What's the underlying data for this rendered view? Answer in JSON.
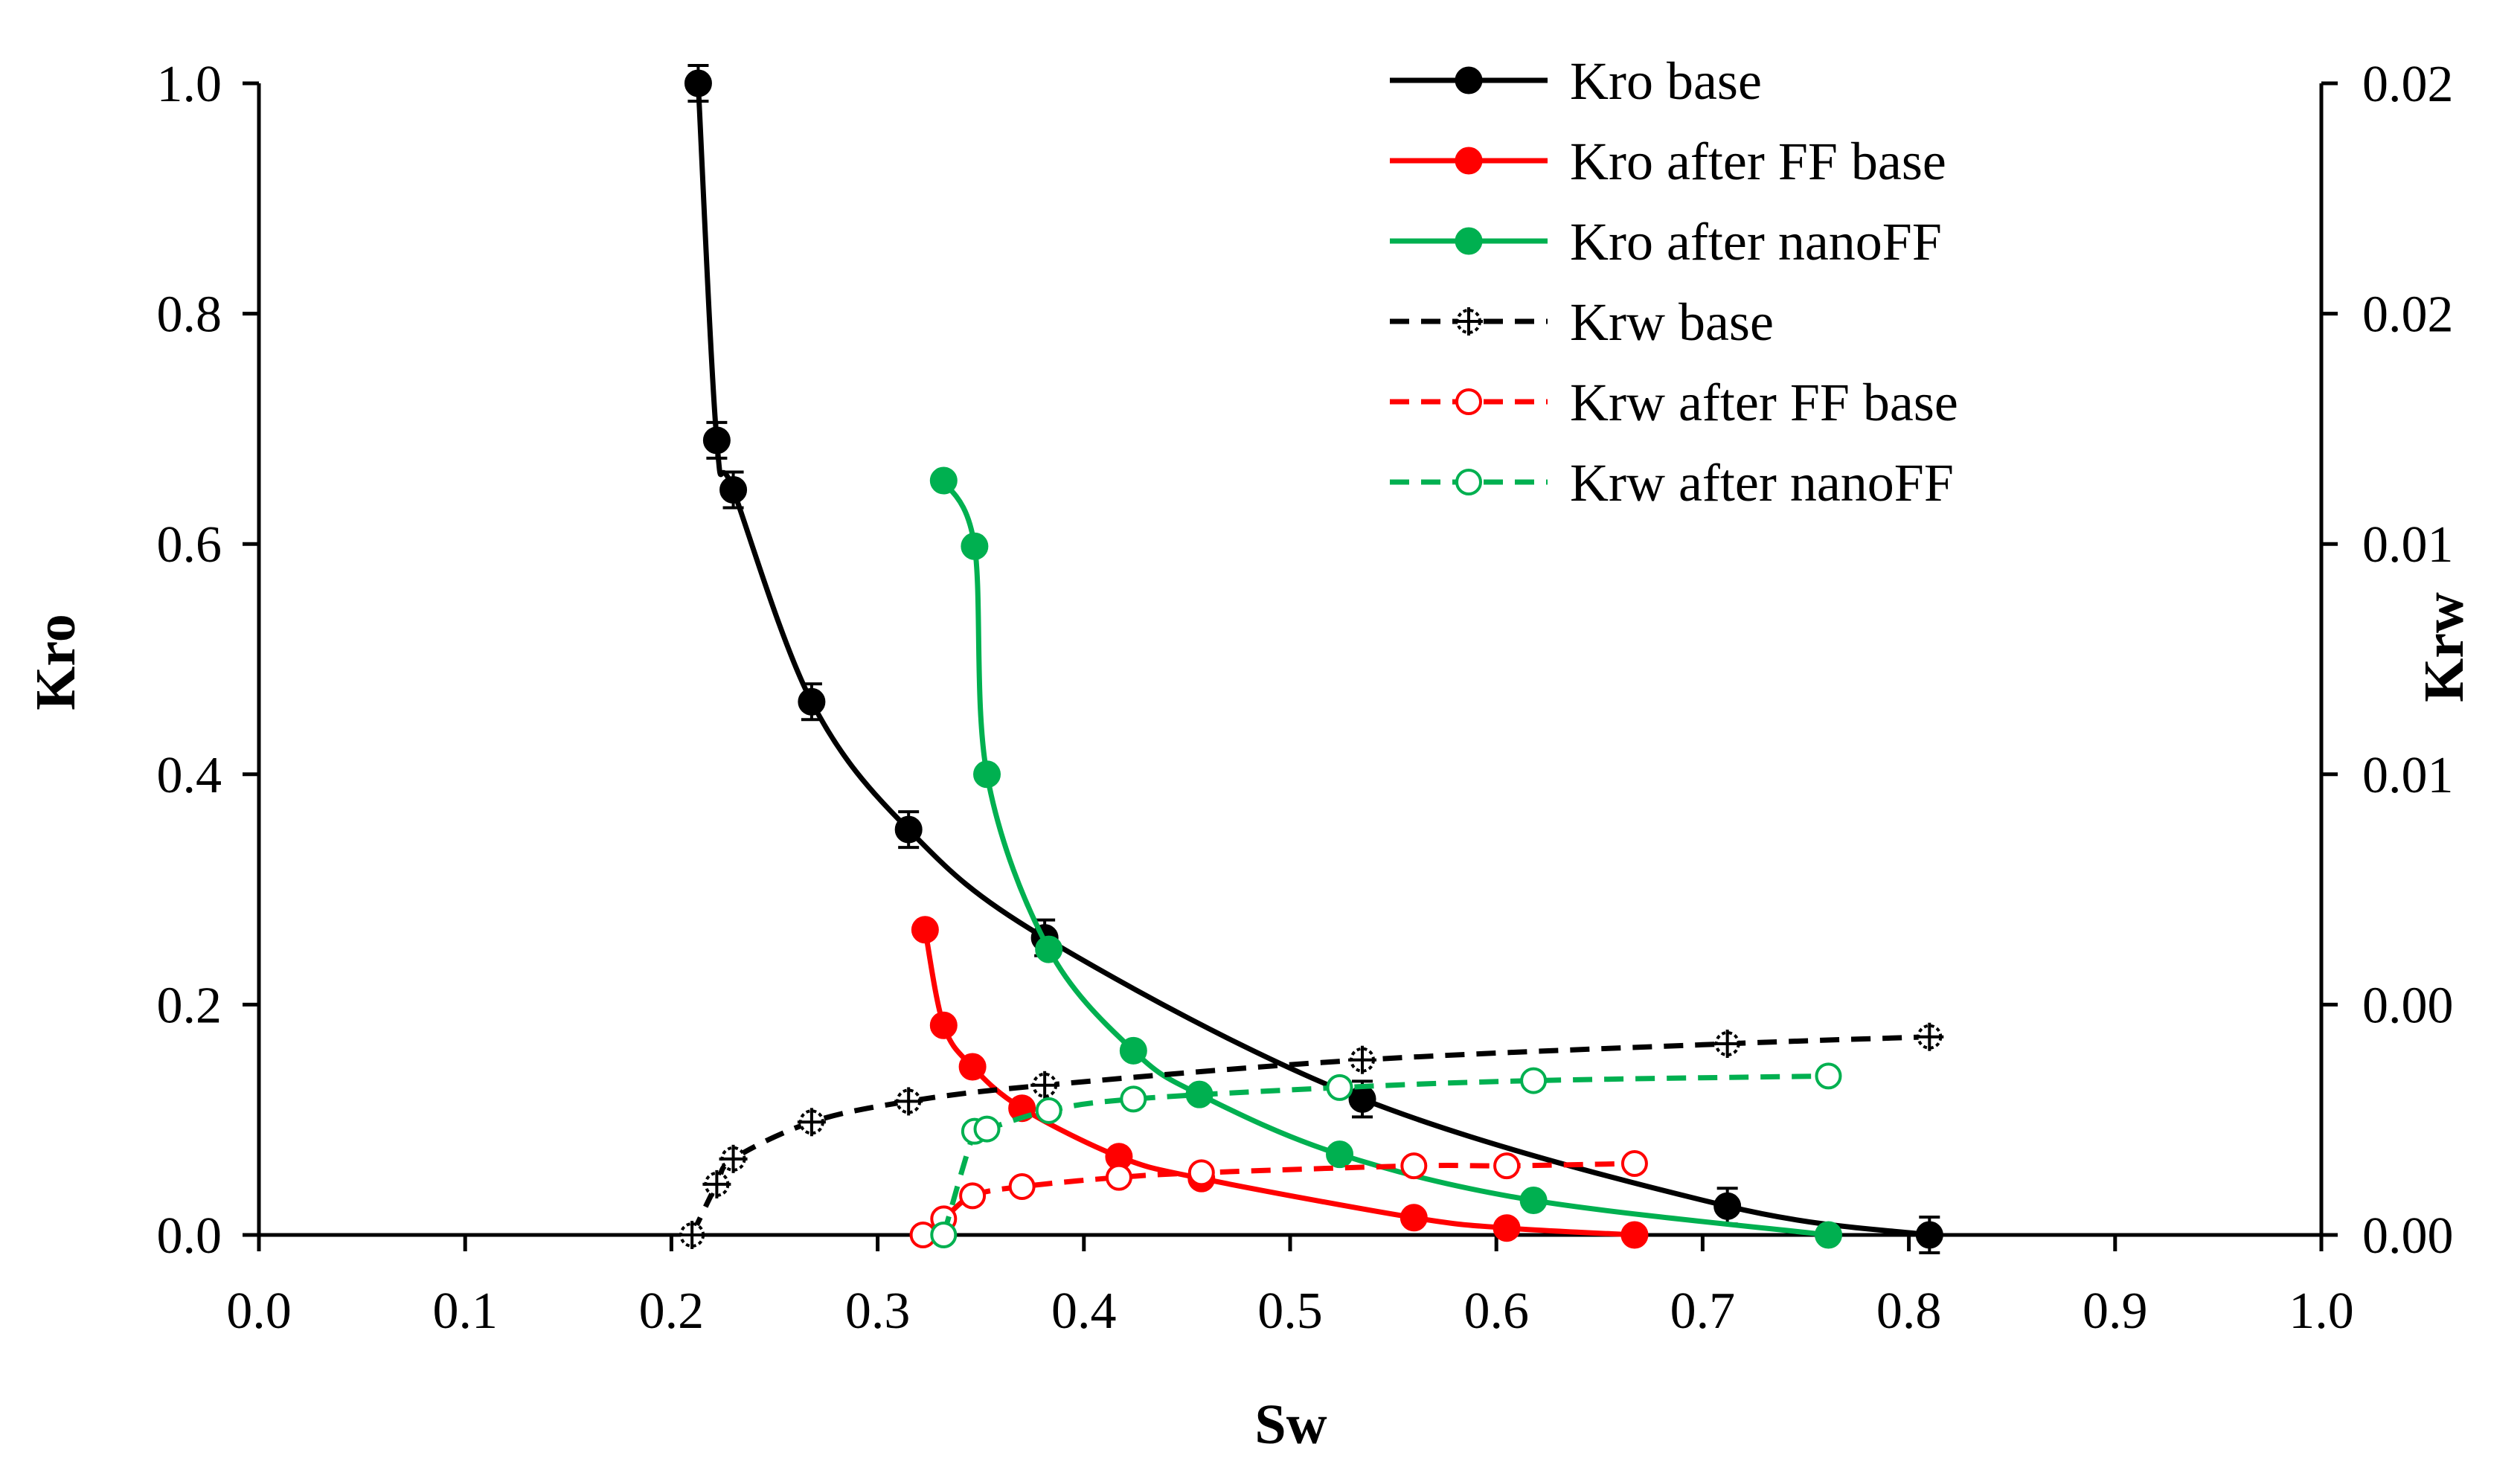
{
  "chart_data": {
    "type": "scatter",
    "title": "",
    "xlabel": "Sw",
    "ylabel": "Kro",
    "y2label": "Krw",
    "xlim": [
      0,
      1
    ],
    "ylim": [
      0,
      1
    ],
    "y2lim": [
      0,
      0.025
    ],
    "grid": false,
    "legend_position": "top-right",
    "x_tick_labels": [
      "0.0",
      "0.1",
      "0.2",
      "0.3",
      "0.4",
      "0.5",
      "0.6",
      "0.7",
      "0.8",
      "0.9",
      "1.0"
    ],
    "y_tick_labels": [
      "0.0",
      "0.2",
      "0.4",
      "0.6",
      "0.8",
      "1.0"
    ],
    "y2_tick_labels": [
      "0.00",
      "0.00",
      "0.01",
      "0.01",
      "0.02",
      "0.02"
    ],
    "series": [
      {
        "name": "Kro base",
        "axis": "left",
        "color": "#000000",
        "dashed": false,
        "marker": "filled",
        "error_bars": true,
        "x": [
          0.213,
          0.222,
          0.23,
          0.268,
          0.315,
          0.381,
          0.535,
          0.712,
          0.81
        ],
        "y": [
          1.0,
          0.69,
          0.647,
          0.463,
          0.352,
          0.258,
          0.118,
          0.025,
          0.0
        ]
      },
      {
        "name": "Kro after FF base",
        "axis": "left",
        "color": "#ff0000",
        "dashed": false,
        "marker": "filled",
        "error_bars": false,
        "x": [
          0.323,
          0.332,
          0.346,
          0.37,
          0.417,
          0.457,
          0.56,
          0.605,
          0.667
        ],
        "y": [
          0.265,
          0.182,
          0.146,
          0.11,
          0.068,
          0.049,
          0.015,
          0.006,
          0.0
        ]
      },
      {
        "name": "Kro after nanoFF",
        "axis": "left",
        "color": "#00b050",
        "dashed": false,
        "marker": "filled",
        "error_bars": false,
        "x": [
          0.332,
          0.347,
          0.353,
          0.383,
          0.424,
          0.456,
          0.524,
          0.618,
          0.761
        ],
        "y": [
          0.655,
          0.598,
          0.4,
          0.248,
          0.16,
          0.122,
          0.07,
          0.03,
          0.0
        ]
      },
      {
        "name": "Krw base",
        "axis": "right",
        "color": "#000000",
        "dashed": true,
        "marker": "open-cross",
        "error_bars": false,
        "x": [
          0.21,
          0.222,
          0.23,
          0.268,
          0.315,
          0.381,
          0.535,
          0.712,
          0.81
        ],
        "y": [
          0.0,
          0.0011,
          0.00165,
          0.00245,
          0.0029,
          0.00325,
          0.0038,
          0.00415,
          0.0043
        ]
      },
      {
        "name": "Krw after FF base",
        "axis": "right",
        "color": "#ff0000",
        "dashed": true,
        "marker": "open",
        "error_bars": false,
        "x": [
          0.322,
          0.332,
          0.346,
          0.37,
          0.417,
          0.457,
          0.56,
          0.605,
          0.667
        ],
        "y": [
          0.0,
          0.00035,
          0.00085,
          0.00105,
          0.00125,
          0.00135,
          0.0015,
          0.0015,
          0.00155
        ]
      },
      {
        "name": "Krw after nanoFF",
        "axis": "right",
        "color": "#00b050",
        "dashed": true,
        "marker": "open",
        "error_bars": false,
        "x": [
          0.332,
          0.347,
          0.353,
          0.383,
          0.424,
          0.524,
          0.618,
          0.761
        ],
        "y": [
          0.0,
          0.00225,
          0.0023,
          0.0027,
          0.00295,
          0.0032,
          0.00335,
          0.00345
        ]
      }
    ]
  }
}
